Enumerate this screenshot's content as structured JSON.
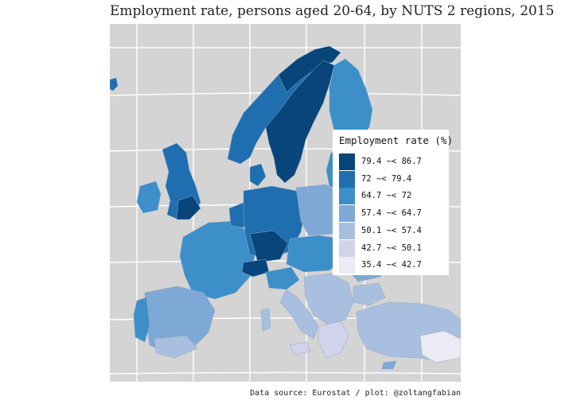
{
  "title": "Employment rate, persons aged 20-64, by NUTS 2 regions, 2015",
  "caption": "Data source: Eurostat / plot: @zoltangfabian",
  "colors": {
    "background": "#d4d4d4",
    "gridline": "#ffffff",
    "border": "#a8b8c8"
  },
  "legend": {
    "title": "Employment rate (%)",
    "items": [
      {
        "label": "79.4 ~< 86.7",
        "color": "#08457a"
      },
      {
        "label": "72 ~< 79.4",
        "color": "#1f6fb0"
      },
      {
        "label": "64.7 ~< 72",
        "color": "#3d8fc9"
      },
      {
        "label": "57.4 ~< 64.7",
        "color": "#7ea9d6"
      },
      {
        "label": "50.1 ~< 57.4",
        "color": "#a9bfe0"
      },
      {
        "label": "42.7 ~< 50.1",
        "color": "#d0d3ea"
      },
      {
        "label": "35.4 ~< 42.7",
        "color": "#eceaf4"
      }
    ]
  }
}
